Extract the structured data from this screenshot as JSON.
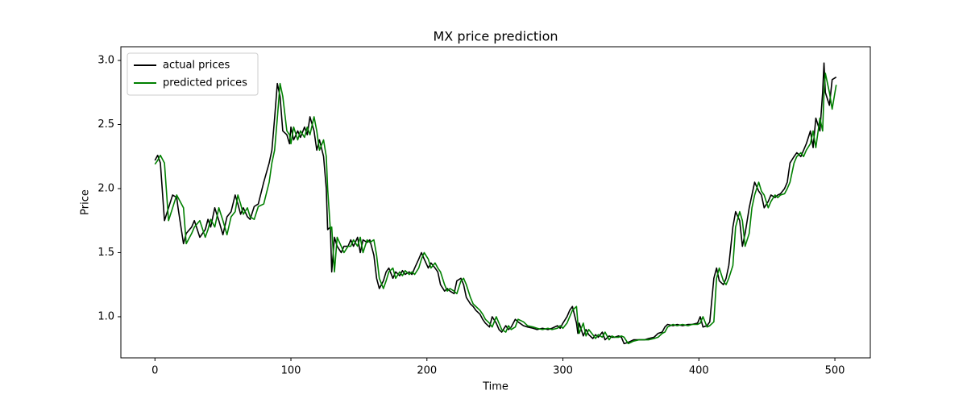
{
  "chart_data": {
    "type": "line",
    "title": "MX price prediction",
    "x_label": "Time",
    "y_label": "Price",
    "x": [
      0,
      2,
      4,
      7,
      10,
      13,
      16,
      17,
      21,
      23,
      27,
      29,
      33,
      37,
      39,
      41,
      44,
      47,
      50,
      53,
      56,
      59,
      61,
      63,
      65,
      68,
      70,
      73,
      76,
      80,
      84,
      86,
      88,
      90,
      92,
      94,
      97,
      99,
      100,
      102,
      105,
      107,
      110,
      112,
      114,
      117,
      119,
      121,
      124,
      126,
      127,
      129,
      130,
      132,
      134,
      137,
      139,
      142,
      144,
      146,
      149,
      151,
      153,
      156,
      158,
      161,
      163,
      165,
      168,
      170,
      172,
      175,
      177,
      180,
      182,
      184,
      187,
      189,
      191,
      194,
      196,
      198,
      201,
      203,
      206,
      208,
      210,
      213,
      215,
      217,
      220,
      222,
      225,
      227,
      229,
      232,
      234,
      236,
      239,
      241,
      243,
      246,
      248,
      251,
      253,
      255,
      258,
      260,
      262,
      265,
      267,
      271,
      274,
      278,
      281,
      285,
      289,
      292,
      296,
      298,
      300,
      303,
      305,
      307,
      310,
      311,
      312,
      315,
      317,
      319,
      322,
      324,
      326,
      329,
      331,
      334,
      336,
      338,
      341,
      343,
      345,
      348,
      350,
      352,
      356,
      360,
      363,
      367,
      370,
      373,
      375,
      377,
      381,
      384,
      388,
      392,
      395,
      399,
      401,
      403,
      406,
      408,
      411,
      413,
      415,
      418,
      420,
      422,
      425,
      427,
      430,
      432,
      434,
      437,
      439,
      441,
      444,
      446,
      448,
      451,
      453,
      456,
      458,
      460,
      463,
      465,
      467,
      470,
      472,
      475,
      477,
      479,
      482,
      484,
      486,
      489,
      491,
      492,
      493,
      496,
      498,
      501
    ],
    "series": [
      {
        "name": "actual prices",
        "color": "#000000",
        "values": [
          2.22,
          2.26,
          2.2,
          1.75,
          1.85,
          1.95,
          1.93,
          1.85,
          1.57,
          1.65,
          1.7,
          1.75,
          1.62,
          1.68,
          1.76,
          1.7,
          1.85,
          1.75,
          1.64,
          1.78,
          1.82,
          1.95,
          1.88,
          1.8,
          1.85,
          1.78,
          1.76,
          1.86,
          1.88,
          2.05,
          2.2,
          2.3,
          2.55,
          2.82,
          2.72,
          2.45,
          2.42,
          2.35,
          2.48,
          2.38,
          2.45,
          2.4,
          2.48,
          2.42,
          2.56,
          2.45,
          2.3,
          2.38,
          2.25,
          2.0,
          1.68,
          1.7,
          1.35,
          1.62,
          1.55,
          1.5,
          1.55,
          1.55,
          1.6,
          1.55,
          1.62,
          1.5,
          1.6,
          1.58,
          1.6,
          1.48,
          1.3,
          1.22,
          1.28,
          1.35,
          1.38,
          1.3,
          1.35,
          1.32,
          1.36,
          1.33,
          1.35,
          1.33,
          1.38,
          1.45,
          1.5,
          1.45,
          1.38,
          1.42,
          1.38,
          1.35,
          1.25,
          1.2,
          1.22,
          1.2,
          1.18,
          1.28,
          1.3,
          1.25,
          1.15,
          1.1,
          1.08,
          1.05,
          1.02,
          0.98,
          0.95,
          0.92,
          1.0,
          0.95,
          0.9,
          0.88,
          0.93,
          0.9,
          0.92,
          0.98,
          0.96,
          0.93,
          0.92,
          0.91,
          0.9,
          0.91,
          0.9,
          0.91,
          0.93,
          0.91,
          0.95,
          1.0,
          1.05,
          1.08,
          0.95,
          0.87,
          0.95,
          0.85,
          0.9,
          0.86,
          0.83,
          0.86,
          0.84,
          0.88,
          0.82,
          0.85,
          0.84,
          0.84,
          0.85,
          0.84,
          0.79,
          0.8,
          0.81,
          0.82,
          0.82,
          0.82,
          0.83,
          0.84,
          0.87,
          0.88,
          0.92,
          0.94,
          0.93,
          0.94,
          0.93,
          0.94,
          0.94,
          0.95,
          1.0,
          0.92,
          0.93,
          0.96,
          1.3,
          1.38,
          1.28,
          1.25,
          1.3,
          1.4,
          1.7,
          1.82,
          1.75,
          1.55,
          1.65,
          1.85,
          1.95,
          2.05,
          1.98,
          1.95,
          1.85,
          1.9,
          1.95,
          1.93,
          1.95,
          1.96,
          2.0,
          2.05,
          2.2,
          2.25,
          2.28,
          2.25,
          2.3,
          2.35,
          2.45,
          2.32,
          2.55,
          2.45,
          2.75,
          2.98,
          2.75,
          2.65,
          2.85,
          2.87
        ]
      },
      {
        "name": "predicted prices",
        "color": "#008000",
        "values": [
          2.19,
          2.22,
          2.26,
          2.2,
          1.75,
          1.85,
          1.95,
          1.93,
          1.85,
          1.57,
          1.65,
          1.7,
          1.75,
          1.62,
          1.68,
          1.76,
          1.7,
          1.85,
          1.75,
          1.64,
          1.78,
          1.82,
          1.95,
          1.88,
          1.8,
          1.85,
          1.78,
          1.76,
          1.86,
          1.88,
          2.05,
          2.2,
          2.3,
          2.55,
          2.82,
          2.72,
          2.45,
          2.42,
          2.35,
          2.48,
          2.38,
          2.45,
          2.4,
          2.48,
          2.42,
          2.56,
          2.45,
          2.3,
          2.38,
          2.25,
          2.0,
          1.68,
          1.7,
          1.35,
          1.62,
          1.55,
          1.5,
          1.55,
          1.55,
          1.6,
          1.55,
          1.62,
          1.5,
          1.6,
          1.58,
          1.6,
          1.48,
          1.3,
          1.22,
          1.28,
          1.35,
          1.38,
          1.3,
          1.35,
          1.32,
          1.36,
          1.33,
          1.35,
          1.33,
          1.38,
          1.45,
          1.5,
          1.45,
          1.38,
          1.42,
          1.38,
          1.35,
          1.25,
          1.2,
          1.22,
          1.2,
          1.18,
          1.28,
          1.3,
          1.25,
          1.15,
          1.1,
          1.08,
          1.05,
          1.02,
          0.98,
          0.95,
          0.92,
          1.0,
          0.95,
          0.9,
          0.88,
          0.93,
          0.9,
          0.92,
          0.98,
          0.96,
          0.93,
          0.92,
          0.91,
          0.9,
          0.91,
          0.9,
          0.91,
          0.93,
          0.91,
          0.95,
          1.0,
          1.05,
          1.08,
          0.95,
          0.87,
          0.95,
          0.85,
          0.9,
          0.86,
          0.83,
          0.86,
          0.84,
          0.88,
          0.82,
          0.85,
          0.84,
          0.84,
          0.85,
          0.84,
          0.79,
          0.8,
          0.81,
          0.82,
          0.82,
          0.82,
          0.83,
          0.84,
          0.87,
          0.88,
          0.92,
          0.94,
          0.93,
          0.94,
          0.93,
          0.94,
          0.94,
          0.95,
          1.0,
          0.92,
          0.93,
          0.96,
          1.3,
          1.38,
          1.28,
          1.25,
          1.3,
          1.4,
          1.7,
          1.82,
          1.75,
          1.55,
          1.65,
          1.85,
          1.95,
          2.05,
          1.98,
          1.95,
          1.85,
          1.9,
          1.95,
          1.93,
          1.95,
          1.96,
          2.0,
          2.05,
          2.2,
          2.25,
          2.28,
          2.25,
          2.3,
          2.35,
          2.45,
          2.32,
          2.55,
          2.45,
          2.75,
          2.9,
          2.75,
          2.62,
          2.81
        ]
      }
    ],
    "xlim": [
      -25.05,
      526.05
    ],
    "ylim": [
      0.679,
      3.107
    ],
    "xticks": [
      0,
      100,
      200,
      300,
      400,
      500
    ],
    "yticks": [
      {
        "value": 1,
        "label": "1.0"
      },
      {
        "value": 1.5,
        "label": "1.5"
      },
      {
        "value": 2,
        "label": "2.0"
      },
      {
        "value": 2.5,
        "label": "2.5"
      },
      {
        "value": 3,
        "label": "3.0"
      }
    ],
    "grid": false,
    "legend": "upper left"
  }
}
